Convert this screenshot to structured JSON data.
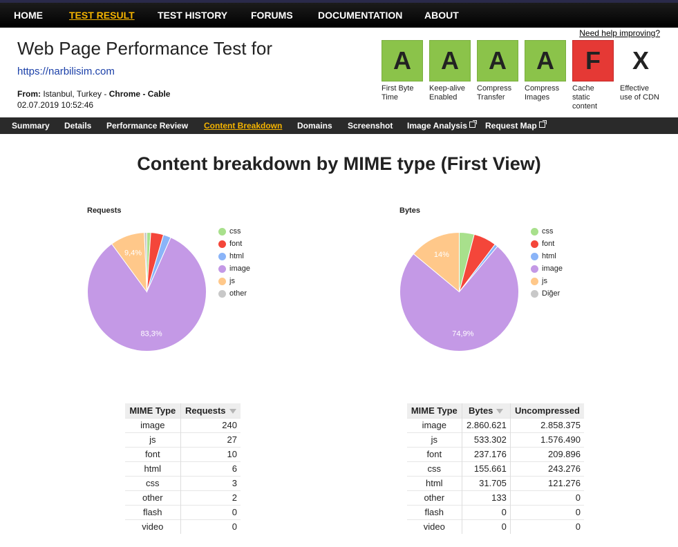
{
  "nav": {
    "items": [
      {
        "label": "HOME",
        "active": false
      },
      {
        "label": "TEST RESULT",
        "active": true
      },
      {
        "label": "TEST HISTORY",
        "active": false
      },
      {
        "label": "FORUMS",
        "active": false
      },
      {
        "label": "DOCUMENTATION",
        "active": false
      },
      {
        "label": "ABOUT",
        "active": false
      }
    ]
  },
  "help_link": "Need help improving?",
  "header": {
    "title": "Web Page Performance Test for",
    "url": "https://narbilisim.com",
    "from_label": "From:",
    "location": "Istanbul, Turkey",
    "separator": "-",
    "browser": "Chrome",
    "connection": "Cable",
    "datetime": "02.07.2019 10:52:46"
  },
  "grades": [
    {
      "grade": "A",
      "label_lines": [
        "First Byte",
        "Time"
      ],
      "color": "#8bc34a"
    },
    {
      "grade": "A",
      "label_lines": [
        "Keep-alive",
        "Enabled"
      ],
      "color": "#8bc34a"
    },
    {
      "grade": "A",
      "label_lines": [
        "Compress",
        "Transfer"
      ],
      "color": "#8bc34a"
    },
    {
      "grade": "A",
      "label_lines": [
        "Compress",
        "Images"
      ],
      "color": "#8bc34a"
    },
    {
      "grade": "F",
      "label_lines": [
        "Cache",
        "static",
        "content"
      ],
      "color": "#e53935"
    },
    {
      "grade": "X",
      "label_lines": [
        "Effective",
        "use of CDN"
      ],
      "color": ""
    }
  ],
  "subnav": {
    "items": [
      {
        "label": "Summary",
        "active": false,
        "external": false
      },
      {
        "label": "Details",
        "active": false,
        "external": false
      },
      {
        "label": "Performance Review",
        "active": false,
        "external": false
      },
      {
        "label": "Content Breakdown",
        "active": true,
        "external": false
      },
      {
        "label": "Domains",
        "active": false,
        "external": false
      },
      {
        "label": "Screenshot",
        "active": false,
        "external": false
      },
      {
        "label": "Image Analysis",
        "active": false,
        "external": true
      },
      {
        "label": "Request Map",
        "active": false,
        "external": true
      }
    ]
  },
  "page_heading": "Content breakdown by MIME type (First View)",
  "chart_data": [
    {
      "type": "pie",
      "title": "Requests",
      "categories": [
        "css",
        "font",
        "html",
        "image",
        "js",
        "other"
      ],
      "values": [
        3,
        10,
        6,
        240,
        27,
        2
      ],
      "colors": [
        "#a8e08c",
        "#f4463a",
        "#8ab4f8",
        "#c499e6",
        "#ffc88a",
        "#c8c8c8"
      ],
      "slice_labels": {
        "image": "83,3%",
        "js": "9,4%"
      },
      "legend": "right"
    },
    {
      "type": "pie",
      "title": "Bytes",
      "categories": [
        "css",
        "font",
        "html",
        "image",
        "js",
        "Diğer"
      ],
      "values": [
        155661,
        237176,
        31705,
        2860621,
        533302,
        133
      ],
      "colors": [
        "#a8e08c",
        "#f4463a",
        "#8ab4f8",
        "#c499e6",
        "#ffc88a",
        "#c8c8c8"
      ],
      "slice_labels": {
        "image": "74,9%",
        "js": "14%"
      },
      "legend": "right"
    }
  ],
  "requests_table": {
    "headers": [
      "MIME Type",
      "Requests"
    ],
    "rows": [
      [
        "image",
        "240"
      ],
      [
        "js",
        "27"
      ],
      [
        "font",
        "10"
      ],
      [
        "html",
        "6"
      ],
      [
        "css",
        "3"
      ],
      [
        "other",
        "2"
      ],
      [
        "flash",
        "0"
      ],
      [
        "video",
        "0"
      ]
    ]
  },
  "bytes_table": {
    "headers": [
      "MIME Type",
      "Bytes",
      "Uncompressed"
    ],
    "rows": [
      [
        "image",
        "2.860.621",
        "2.858.375"
      ],
      [
        "js",
        "533.302",
        "1.576.490"
      ],
      [
        "font",
        "237.176",
        "209.896"
      ],
      [
        "css",
        "155.661",
        "243.276"
      ],
      [
        "html",
        "31.705",
        "121.276"
      ],
      [
        "other",
        "133",
        "0"
      ],
      [
        "flash",
        "0",
        "0"
      ],
      [
        "video",
        "0",
        "0"
      ]
    ]
  }
}
